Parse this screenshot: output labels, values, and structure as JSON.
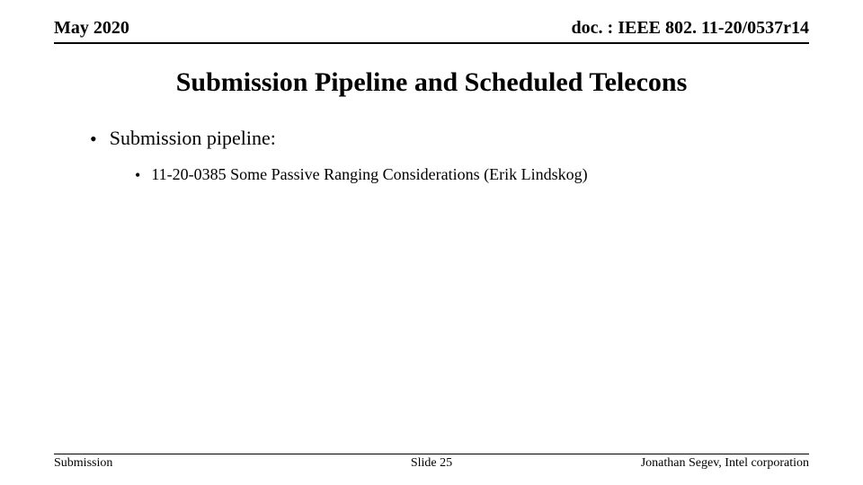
{
  "header": {
    "date": "May 2020",
    "doc_ref": "doc. : IEEE 802. 11-20/0537r14"
  },
  "title": "Submission Pipeline and Scheduled Telecons",
  "content": {
    "l1_label": "Submission pipeline:",
    "l2_label": "11-20-0385 Some Passive Ranging Considerations (Erik Lindskog)"
  },
  "footer": {
    "left": "Submission",
    "center": "Slide 25",
    "right": "Jonathan Segev, Intel corporation"
  },
  "style": {
    "background_color": "#ffffff",
    "text_color": "#000000",
    "rule_color": "#000000",
    "font_family": "Times New Roman",
    "header_fontsize_pt": 15,
    "title_fontsize_pt": 22,
    "l1_fontsize_pt": 16,
    "l2_fontsize_pt": 13,
    "footer_fontsize_pt": 10
  }
}
